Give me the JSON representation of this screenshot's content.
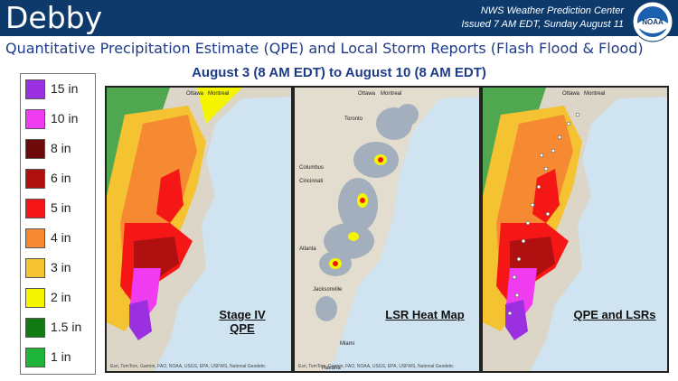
{
  "header": {
    "storm_name": "Debby",
    "issuer_line1": "NWS Weather Prediction Center",
    "issuer_line2": "Issued 7 AM EDT, Sunday August 11",
    "logo_text": "NOAA"
  },
  "subtitle": "Quantitative Precipitation Estimate (QPE) and Local Storm Reports (Flash Flood & Flood)",
  "date_range": "August 3 (8 AM EDT) to August 10 (8 AM EDT)",
  "legend": [
    {
      "label": "15 in",
      "color": "#9b30e0"
    },
    {
      "label": "10 in",
      "color": "#f03cf0"
    },
    {
      "label": "8 in",
      "color": "#6e0a0a"
    },
    {
      "label": "6 in",
      "color": "#b01010"
    },
    {
      "label": "5 in",
      "color": "#f51616"
    },
    {
      "label": "4 in",
      "color": "#f58a32"
    },
    {
      "label": "3 in",
      "color": "#f5c232"
    },
    {
      "label": "2 in",
      "color": "#f5f500"
    },
    {
      "label": "1.5 in",
      "color": "#127a12"
    },
    {
      "label": "1 in",
      "color": "#1fb43a"
    }
  ],
  "panels": [
    {
      "label_line1": "Stage IV",
      "label_line2": "QPE"
    },
    {
      "label_line1": "LSR Heat Map",
      "label_line2": ""
    },
    {
      "label_line1": "QPE and LSRs",
      "label_line2": ""
    }
  ],
  "map_labels": {
    "ottawa": "Ottawa",
    "montreal": "Montreal",
    "toronto": "Toronto",
    "columbus": "Columbus",
    "cincinnati": "Cincinnati",
    "atlanta": "Atlanta",
    "jacksonville": "Jacksonville",
    "miami": "Miami",
    "havana": "Havana"
  },
  "credit": "Esri, TomTom, Garmin, FAO, NOAA, USGS, EPA, USFWS, National Geodetic"
}
